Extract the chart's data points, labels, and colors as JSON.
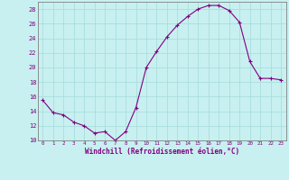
{
  "x": [
    0,
    1,
    2,
    3,
    4,
    5,
    6,
    7,
    8,
    9,
    10,
    11,
    12,
    13,
    14,
    15,
    16,
    17,
    18,
    19,
    20,
    21,
    22,
    23
  ],
  "y": [
    15.5,
    13.8,
    13.5,
    12.5,
    12.0,
    11.0,
    11.2,
    10.0,
    11.2,
    14.5,
    20.0,
    22.2,
    24.2,
    25.8,
    27.0,
    28.0,
    28.5,
    28.5,
    27.8,
    26.2,
    20.8,
    18.5,
    18.5,
    18.3
  ],
  "line_color": "#800080",
  "marker": "+",
  "marker_size": 3,
  "bg_color": "#c8f0f0",
  "grid_color": "#aadddd",
  "axis_color": "#800080",
  "xlabel": "Windchill (Refroidissement éolien,°C)",
  "ylim": [
    10,
    29
  ],
  "xlim": [
    -0.5,
    23.5
  ],
  "yticks": [
    10,
    12,
    14,
    16,
    18,
    20,
    22,
    24,
    26,
    28
  ],
  "xticks": [
    0,
    1,
    2,
    3,
    4,
    5,
    6,
    7,
    8,
    9,
    10,
    11,
    12,
    13,
    14,
    15,
    16,
    17,
    18,
    19,
    20,
    21,
    22,
    23
  ]
}
